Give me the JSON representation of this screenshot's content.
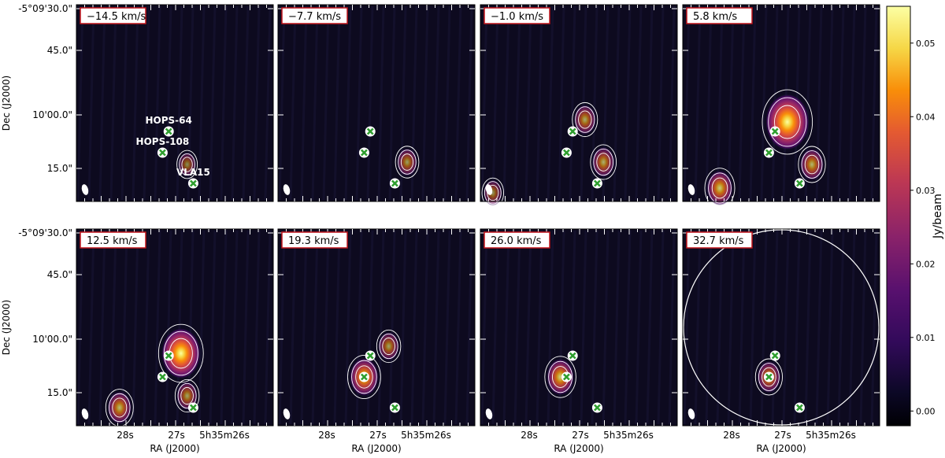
{
  "chart_data": {
    "type": "heatmap",
    "title": "",
    "ylabel": "Dec (J2000)",
    "xlabel": "RA (J2000)",
    "y_ticks": [
      "-5°09'30.0\"",
      "45.0\"",
      "10'00.0\"",
      "15.0\""
    ],
    "x_ticks": [
      "28s",
      "27s",
      "5h35m26s"
    ],
    "colorbar": {
      "label": "Jy/beam",
      "ticks": [
        "0.00",
        "0.01",
        "0.02",
        "0.03",
        "0.04",
        "0.05"
      ],
      "range": [
        -0.002,
        0.055
      ],
      "colormap": "inferno"
    },
    "sources": [
      {
        "name": "HOPS-64",
        "ra_s": 27.1,
        "dec_s": 55.0
      },
      {
        "name": "HOPS-108",
        "ra_s": 27.2,
        "dec_s": 59.5
      },
      {
        "name": "VLA15",
        "ra_s": 26.7,
        "dec_s": 66.0
      }
    ],
    "panels": [
      {
        "velocity": "−14.5 km/s",
        "emission": [
          {
            "ra_s": 26.8,
            "dec_s": 62.0,
            "peak": 0.004
          }
        ]
      },
      {
        "velocity": "−7.7 km/s",
        "emission": [
          {
            "ra_s": 26.5,
            "dec_s": 61.5,
            "peak": 0.009
          }
        ]
      },
      {
        "velocity": "−1.0 km/s",
        "emission": [
          {
            "ra_s": 26.9,
            "dec_s": 52.5,
            "peak": 0.012
          },
          {
            "ra_s": 26.6,
            "dec_s": 61.5,
            "peak": 0.013
          },
          {
            "ra_s": 28.4,
            "dec_s": 68.0,
            "peak": 0.006
          }
        ]
      },
      {
        "velocity": "5.8 km/s",
        "emission": [
          {
            "ra_s": 26.9,
            "dec_s": 53.0,
            "peak": 0.054
          },
          {
            "ra_s": 26.5,
            "dec_s": 62.0,
            "peak": 0.015
          },
          {
            "ra_s": 28.0,
            "dec_s": 67.0,
            "peak": 0.02
          }
        ]
      },
      {
        "velocity": "12.5 km/s",
        "emission": [
          {
            "ra_s": 26.9,
            "dec_s": 54.5,
            "peak": 0.045
          },
          {
            "ra_s": 27.9,
            "dec_s": 66.0,
            "peak": 0.016
          },
          {
            "ra_s": 26.8,
            "dec_s": 63.5,
            "peak": 0.01
          }
        ]
      },
      {
        "velocity": "19.3 km/s",
        "emission": [
          {
            "ra_s": 27.2,
            "dec_s": 59.5,
            "peak": 0.025
          },
          {
            "ra_s": 26.8,
            "dec_s": 53.0,
            "peak": 0.01
          }
        ]
      },
      {
        "velocity": "26.0 km/s",
        "emission": [
          {
            "ra_s": 27.3,
            "dec_s": 59.5,
            "peak": 0.022
          }
        ]
      },
      {
        "velocity": "32.7 km/s",
        "emission": [
          {
            "ra_s": 27.2,
            "dec_s": 59.5,
            "peak": 0.015
          }
        ]
      }
    ],
    "grid": false
  }
}
